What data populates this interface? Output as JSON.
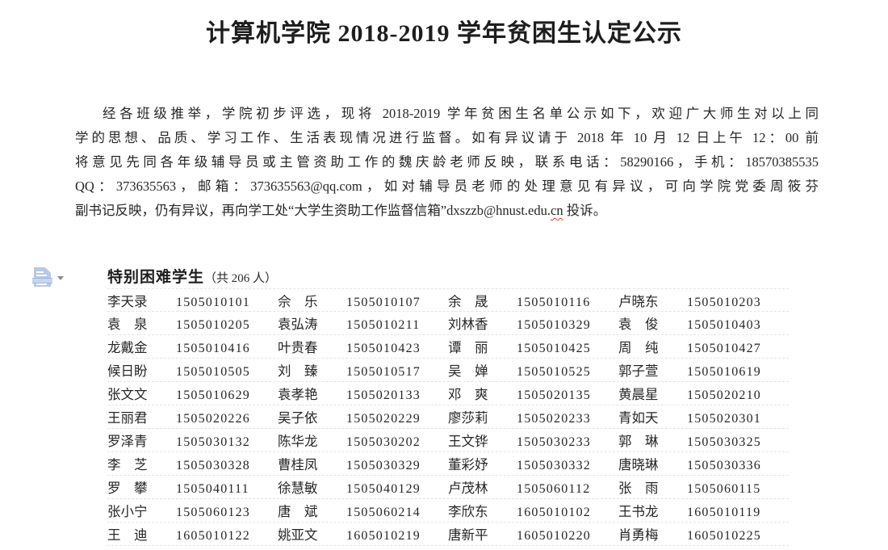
{
  "page": {
    "background": "#ffffff",
    "text_color": "#212121",
    "accent_blue": "#b5c9e8",
    "squiggle_red": "#e23b2e",
    "gridline_gray": "#e4e4e4"
  },
  "title": "计算机学院 2018-2019 学年贫困生认定公示",
  "notice": {
    "lines": [
      "经各班级推举，学院初步评选，现将 2018-2019 学年贫困生名单公示如下，欢迎广大师生对以上同",
      "学的思想、品质、学习工作、生活表现情况进行监督。如有异议请于 2018 年 10 月 12 日上午 12：00 前",
      "将意见先同各年级辅导员或主管资助工作的魏庆龄老师反映，联系电话：58290166，手机：18570385535",
      "QQ：373635563，邮箱：373635563@qq.com，如对辅导员老师的处理意见有异议，可向学院党委周筱芬"
    ],
    "last_line": {
      "pre": "副书记反映，仍有异议，再向学工处“大学生资助工作监督信箱”dxszzb@hnust.edu.",
      "misspelled": "cn",
      "post": " 投诉。"
    }
  },
  "paste_button": {
    "label": "paste-options"
  },
  "section": {
    "heading": "特别困难学生",
    "count": "（共 206 人）"
  },
  "students": [
    {
      "name": "李天录",
      "id": "1505010101"
    },
    {
      "name": "佘　乐",
      "id": "1505010107"
    },
    {
      "name": "余　晟",
      "id": "1505010116"
    },
    {
      "name": "卢晓东",
      "id": "1505010203"
    },
    {
      "name": "袁　泉",
      "id": "1505010205"
    },
    {
      "name": "袁弘涛",
      "id": "1505010211"
    },
    {
      "name": "刘林香",
      "id": "1505010329"
    },
    {
      "name": "袁　俊",
      "id": "1505010403"
    },
    {
      "name": "龙戴金",
      "id": "1505010416"
    },
    {
      "name": "叶贵春",
      "id": "1505010423"
    },
    {
      "name": "谭　丽",
      "id": "1505010425"
    },
    {
      "name": "周　纯",
      "id": "1505010427"
    },
    {
      "name": "候日盼",
      "id": "1505010505"
    },
    {
      "name": "刘　臻",
      "id": "1505010517"
    },
    {
      "name": "吴　婵",
      "id": "1505010525"
    },
    {
      "name": "郭子萱",
      "id": "1505010619"
    },
    {
      "name": "张文文",
      "id": "1505010629"
    },
    {
      "name": "袁孝艳",
      "id": "1505020133"
    },
    {
      "name": "邓　爽",
      "id": "1505020135"
    },
    {
      "name": "黄晨星",
      "id": "1505020210"
    },
    {
      "name": "王丽君",
      "id": "1505020226"
    },
    {
      "name": "吴子依",
      "id": "1505020229"
    },
    {
      "name": "廖莎莉",
      "id": "1505020233"
    },
    {
      "name": "青如天",
      "id": "1505020301"
    },
    {
      "name": "罗泽青",
      "id": "1505030132"
    },
    {
      "name": "陈华龙",
      "id": "1505030202"
    },
    {
      "name": "王文铧",
      "id": "1505030233"
    },
    {
      "name": "郭　琳",
      "id": "1505030325"
    },
    {
      "name": "李　芝",
      "id": "1505030328"
    },
    {
      "name": "曹桂凤",
      "id": "1505030329"
    },
    {
      "name": "董彩妤",
      "id": "1505030332"
    },
    {
      "name": "唐晓琳",
      "id": "1505030336"
    },
    {
      "name": "罗　攀",
      "id": "1505040111"
    },
    {
      "name": "徐慧敏",
      "id": "1505040129"
    },
    {
      "name": "卢茂林",
      "id": "1505060112"
    },
    {
      "name": "张　雨",
      "id": "1505060115"
    },
    {
      "name": "张小宁",
      "id": "1505060123"
    },
    {
      "name": "唐　斌",
      "id": "1505060214"
    },
    {
      "name": "李欣东",
      "id": "1605010102"
    },
    {
      "name": "王书龙",
      "id": "1605010119"
    },
    {
      "name": "王　迪",
      "id": "1605010122"
    },
    {
      "name": "姚亚文",
      "id": "1605010219"
    },
    {
      "name": "唐新平",
      "id": "1605010220"
    },
    {
      "name": "肖勇梅",
      "id": "1605010225"
    }
  ]
}
